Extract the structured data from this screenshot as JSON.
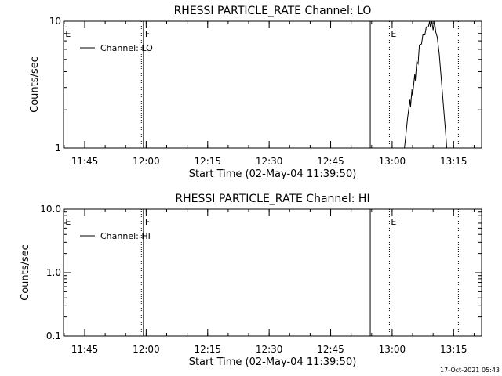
{
  "footer_timestamp": "17-Oct-2021 05:43",
  "chart_data": [
    {
      "type": "line",
      "title": "RHESSI PARTICLE_RATE Channel: LO",
      "xlabel": "Start Time (02-May-04 11:39:50)",
      "ylabel": "Counts/sec",
      "yscale": "log",
      "ylim": [
        1,
        10
      ],
      "xlim": [
        "11:39:50",
        "13:21:50"
      ],
      "yticks": [
        {
          "value": 1,
          "label": "1"
        },
        {
          "value": 10,
          "label": "10"
        }
      ],
      "xticks": [
        {
          "time": "11:45",
          "label": "11:45"
        },
        {
          "time": "12:00",
          "label": "12:00"
        },
        {
          "time": "12:15",
          "label": "12:15"
        },
        {
          "time": "12:30",
          "label": "12:30"
        },
        {
          "time": "12:45",
          "label": "12:45"
        },
        {
          "time": "13:00",
          "label": "13:00"
        },
        {
          "time": "13:15",
          "label": "13:15"
        }
      ],
      "legend": {
        "label": "Channel: LO",
        "position": "top-left"
      },
      "markers": [
        {
          "time": "11:39:55",
          "letter": "E",
          "style": "none"
        },
        {
          "time": "11:58:50",
          "letter": "",
          "style": "dotted"
        },
        {
          "time": "11:59:20",
          "letter": "F",
          "style": "solid"
        },
        {
          "time": "12:54:40",
          "letter": "",
          "style": "solid"
        },
        {
          "time": "12:59:20",
          "letter": "E",
          "style": "dotted"
        },
        {
          "time": "13:16:10",
          "letter": "",
          "style": "dotted"
        }
      ],
      "series": [
        {
          "points": [
            [
              "13:03:00",
              1.0
            ],
            [
              "13:03:20",
              1.25
            ],
            [
              "13:03:45",
              1.7
            ],
            [
              "13:04:20",
              2.4
            ],
            [
              "13:04:30",
              2.1
            ],
            [
              "13:04:50",
              2.9
            ],
            [
              "13:05:00",
              2.6
            ],
            [
              "13:05:30",
              3.8
            ],
            [
              "13:05:40",
              3.4
            ],
            [
              "13:06:00",
              4.8
            ],
            [
              "13:06:20",
              4.6
            ],
            [
              "13:06:40",
              6.5
            ],
            [
              "13:07:10",
              6.6
            ],
            [
              "13:07:30",
              7.8
            ],
            [
              "13:08:00",
              7.8
            ],
            [
              "13:08:20",
              9.0
            ],
            [
              "13:08:50",
              9.0
            ],
            [
              "13:09:10",
              10.0
            ],
            [
              "13:09:20",
              9.0
            ],
            [
              "13:09:40",
              10.0
            ],
            [
              "13:10:00",
              8.5
            ],
            [
              "13:10:20",
              10.0
            ],
            [
              "13:10:40",
              8.2
            ],
            [
              "13:11:00",
              7.5
            ],
            [
              "13:11:30",
              5.5
            ],
            [
              "13:12:00",
              3.5
            ],
            [
              "13:12:30",
              2.2
            ],
            [
              "13:13:00",
              1.4
            ],
            [
              "13:13:20",
              1.0
            ]
          ]
        }
      ]
    },
    {
      "type": "line",
      "title": "RHESSI PARTICLE_RATE Channel: HI",
      "xlabel": "Start Time (02-May-04 11:39:50)",
      "ylabel": "Counts/sec",
      "yscale": "log",
      "ylim": [
        0.1,
        10
      ],
      "xlim": [
        "11:39:50",
        "13:21:50"
      ],
      "yticks": [
        {
          "value": 0.1,
          "label": "0.1"
        },
        {
          "value": 1,
          "label": "1.0"
        },
        {
          "value": 10,
          "label": "10.0"
        }
      ],
      "xticks": [
        {
          "time": "11:45",
          "label": "11:45"
        },
        {
          "time": "12:00",
          "label": "12:00"
        },
        {
          "time": "12:15",
          "label": "12:15"
        },
        {
          "time": "12:30",
          "label": "12:30"
        },
        {
          "time": "12:45",
          "label": "12:45"
        },
        {
          "time": "13:00",
          "label": "13:00"
        },
        {
          "time": "13:15",
          "label": "13:15"
        }
      ],
      "legend": {
        "label": "Channel: HI",
        "position": "top-left"
      },
      "markers": [
        {
          "time": "11:39:55",
          "letter": "E",
          "style": "none"
        },
        {
          "time": "11:58:50",
          "letter": "",
          "style": "dotted"
        },
        {
          "time": "11:59:20",
          "letter": "F",
          "style": "solid"
        },
        {
          "time": "12:54:40",
          "letter": "",
          "style": "solid"
        },
        {
          "time": "12:59:20",
          "letter": "E",
          "style": "dotted"
        },
        {
          "time": "13:16:10",
          "letter": "",
          "style": "dotted"
        }
      ],
      "series": [
        {
          "points": []
        }
      ]
    }
  ]
}
